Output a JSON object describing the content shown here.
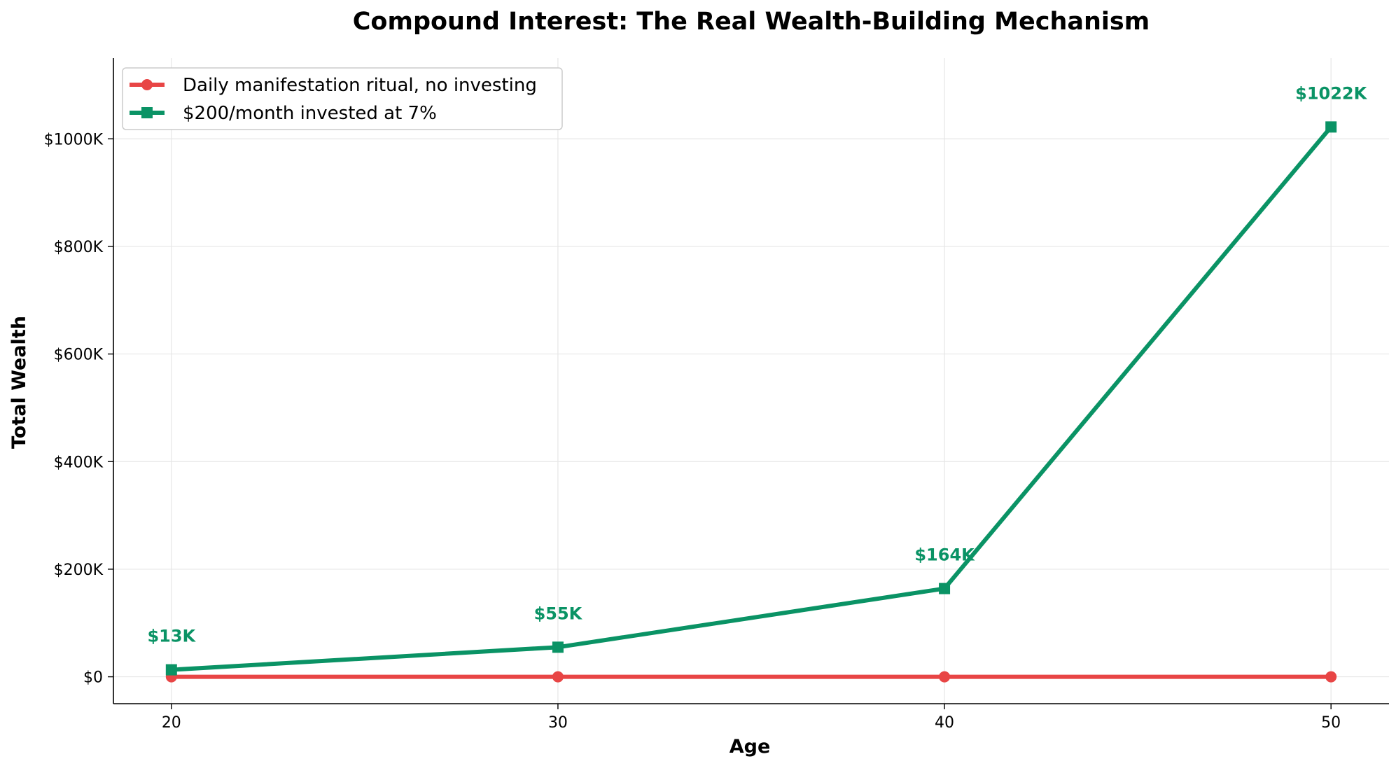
{
  "chart_data": {
    "type": "line",
    "title": "Compound Interest: The Real Wealth-Building Mechanism",
    "xlabel": "Age",
    "ylabel": "Total Wealth",
    "x": [
      20,
      30,
      40,
      50
    ],
    "x_ticks": [
      "20",
      "30",
      "40",
      "50"
    ],
    "y_ticks": [
      {
        "value": 0,
        "label": "$0"
      },
      {
        "value": 200000,
        "label": "$200K"
      },
      {
        "value": 400000,
        "label": "$400K"
      },
      {
        "value": 600000,
        "label": "$600K"
      },
      {
        "value": 800000,
        "label": "$800K"
      },
      {
        "value": 1000000,
        "label": "$1000K"
      }
    ],
    "xlim": [
      18.5,
      51.5
    ],
    "ylim": [
      -50000,
      1150000
    ],
    "grid": true,
    "legend_position": "top-left",
    "series": [
      {
        "name": "Daily manifestation ritual, no investing",
        "values": [
          0,
          0,
          0,
          0
        ],
        "color": "#e84545",
        "marker": "circle",
        "data_labels": []
      },
      {
        "name": "$200/month invested at 7%",
        "values": [
          13000,
          55000,
          164000,
          1022000
        ],
        "color": "#0a9365",
        "marker": "square",
        "data_labels": [
          "$13K",
          "$55K",
          "$164K",
          "$1022K"
        ]
      }
    ]
  }
}
